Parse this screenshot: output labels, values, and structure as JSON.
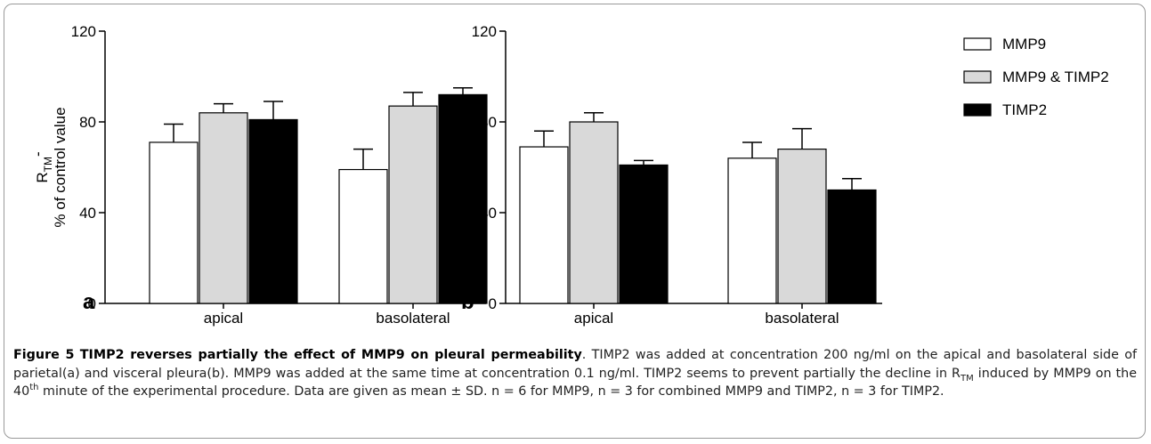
{
  "chart_data": [
    {
      "type": "bar",
      "panel_label": "a",
      "ylabel": {
        "main": "R",
        "sub": "TM",
        "suffix": "-"
      },
      "ylabel2": "% of control value",
      "categories": [
        "apical",
        "basolateral"
      ],
      "ylim": [
        0,
        120
      ],
      "yticks": [
        0,
        40,
        80,
        120
      ],
      "series": [
        {
          "name": "MMP9",
          "color": "#ffffff",
          "values": [
            71,
            59
          ],
          "errors": [
            8,
            9
          ]
        },
        {
          "name": "MMP9 & TIMP2",
          "color": "#d9d9d9",
          "values": [
            84,
            87
          ],
          "errors": [
            4,
            6
          ]
        },
        {
          "name": "TIMP2",
          "color": "#000000",
          "values": [
            81,
            92
          ],
          "errors": [
            8,
            3
          ]
        }
      ]
    },
    {
      "type": "bar",
      "panel_label": "b",
      "categories": [
        "apical",
        "basolateral"
      ],
      "ylim": [
        0,
        120
      ],
      "yticks": [
        0,
        40,
        80,
        120
      ],
      "series": [
        {
          "name": "MMP9",
          "color": "#ffffff",
          "values": [
            69,
            64
          ],
          "errors": [
            7,
            7
          ]
        },
        {
          "name": "MMP9 & TIMP2",
          "color": "#d9d9d9",
          "values": [
            80,
            68
          ],
          "errors": [
            4,
            9
          ]
        },
        {
          "name": "TIMP2",
          "color": "#000000",
          "values": [
            61,
            50
          ],
          "errors": [
            2,
            5
          ]
        }
      ]
    }
  ],
  "caption": {
    "label": "Figure 5",
    "title": "TIMP2 reverses partially the effect of MMP9 on pleural permeability",
    "parts": [
      ". TIMP2 was added at concentration 200 ng/ml on the apical and basolateral side of parietal(a) and visceral pleura(b). MMP9 was added at the same time at concentration 0.1 ng/ml. TIMP2 seems to prevent partially the decline in R",
      "TM",
      " induced by MMP9 on the 40",
      "th",
      " minute of the experimental procedure. Data are given as mean ± SD. n = 6 for MMP9, n = 3 for combined MMP9 and TIMP2, n = 3 for TIMP2."
    ]
  }
}
